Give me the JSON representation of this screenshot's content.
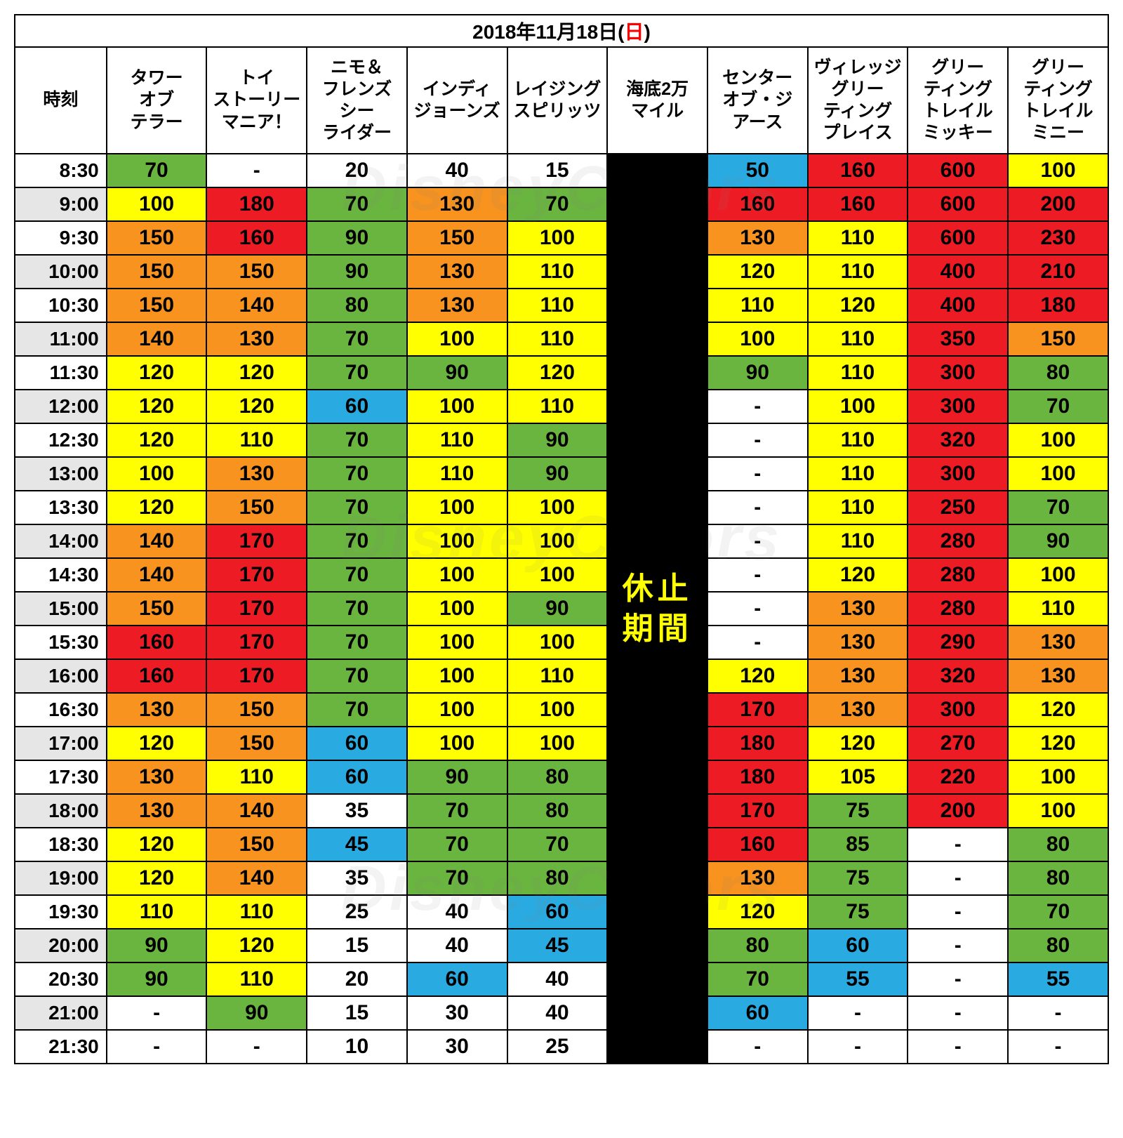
{
  "title_prefix": "2018年11月18日(",
  "title_day": "日",
  "title_suffix": ")",
  "closed_label": "休止\n期間",
  "watermark_text": "DisneyColors",
  "colors": {
    "green": "#6ab53f",
    "yellow": "#ffff00",
    "orange": "#f7931e",
    "red": "#ed1c24",
    "cyan": "#29abe2",
    "white": "#ffffff",
    "grey": "#e6e6e6",
    "black": "#000000",
    "border": "#000000"
  },
  "columns": [
    "時刻",
    "タワー\nオブ\nテラー",
    "トイ\nストーリー\nマニア！",
    "ニモ＆\nフレンズ\nシー\nライダー",
    "インディ\nジョーンズ",
    "レイジング\nスピリッツ",
    "海底2万\nマイル",
    "センター\nオブ・ジ\nアース",
    "ヴィレッジ\nグリー\nティング\nプレイス",
    "グリー\nティング\nトレイル\nミッキー",
    "グリー\nティング\nトレイル\nミニー"
  ],
  "closed_column_index": 6,
  "closed_first_row": 0,
  "closed_rowspan": 27,
  "times": [
    "8:30",
    "9:00",
    "9:30",
    "10:00",
    "10:30",
    "11:00",
    "11:30",
    "12:00",
    "12:30",
    "13:00",
    "13:30",
    "14:00",
    "14:30",
    "15:00",
    "15:30",
    "16:00",
    "16:30",
    "17:00",
    "17:30",
    "18:00",
    "18:30",
    "19:00",
    "19:30",
    "20:00",
    "20:30",
    "21:00",
    "21:30"
  ],
  "time_alt_rows": [
    1,
    3,
    5,
    7,
    9,
    11,
    13,
    15,
    17,
    19,
    21,
    23,
    25
  ],
  "rows": [
    [
      {
        "v": "70",
        "c": "green"
      },
      {
        "v": "-",
        "c": "white"
      },
      {
        "v": "20",
        "c": "white"
      },
      {
        "v": "40",
        "c": "white"
      },
      {
        "v": "15",
        "c": "white"
      },
      null,
      {
        "v": "50",
        "c": "cyan"
      },
      {
        "v": "160",
        "c": "red"
      },
      {
        "v": "600",
        "c": "red"
      },
      {
        "v": "100",
        "c": "yellow"
      }
    ],
    [
      {
        "v": "100",
        "c": "yellow"
      },
      {
        "v": "180",
        "c": "red"
      },
      {
        "v": "70",
        "c": "green"
      },
      {
        "v": "130",
        "c": "orange"
      },
      {
        "v": "70",
        "c": "green"
      },
      null,
      {
        "v": "160",
        "c": "red"
      },
      {
        "v": "160",
        "c": "red"
      },
      {
        "v": "600",
        "c": "red"
      },
      {
        "v": "200",
        "c": "red"
      }
    ],
    [
      {
        "v": "150",
        "c": "orange"
      },
      {
        "v": "160",
        "c": "red"
      },
      {
        "v": "90",
        "c": "green"
      },
      {
        "v": "150",
        "c": "orange"
      },
      {
        "v": "100",
        "c": "yellow"
      },
      null,
      {
        "v": "130",
        "c": "orange"
      },
      {
        "v": "110",
        "c": "yellow"
      },
      {
        "v": "600",
        "c": "red"
      },
      {
        "v": "230",
        "c": "red"
      }
    ],
    [
      {
        "v": "150",
        "c": "orange"
      },
      {
        "v": "150",
        "c": "orange"
      },
      {
        "v": "90",
        "c": "green"
      },
      {
        "v": "130",
        "c": "orange"
      },
      {
        "v": "110",
        "c": "yellow"
      },
      null,
      {
        "v": "120",
        "c": "yellow"
      },
      {
        "v": "110",
        "c": "yellow"
      },
      {
        "v": "400",
        "c": "red"
      },
      {
        "v": "210",
        "c": "red"
      }
    ],
    [
      {
        "v": "150",
        "c": "orange"
      },
      {
        "v": "140",
        "c": "orange"
      },
      {
        "v": "80",
        "c": "green"
      },
      {
        "v": "130",
        "c": "orange"
      },
      {
        "v": "110",
        "c": "yellow"
      },
      null,
      {
        "v": "110",
        "c": "yellow"
      },
      {
        "v": "120",
        "c": "yellow"
      },
      {
        "v": "400",
        "c": "red"
      },
      {
        "v": "180",
        "c": "red"
      }
    ],
    [
      {
        "v": "140",
        "c": "orange"
      },
      {
        "v": "130",
        "c": "orange"
      },
      {
        "v": "70",
        "c": "green"
      },
      {
        "v": "100",
        "c": "yellow"
      },
      {
        "v": "110",
        "c": "yellow"
      },
      null,
      {
        "v": "100",
        "c": "yellow"
      },
      {
        "v": "110",
        "c": "yellow"
      },
      {
        "v": "350",
        "c": "red"
      },
      {
        "v": "150",
        "c": "orange"
      }
    ],
    [
      {
        "v": "120",
        "c": "yellow"
      },
      {
        "v": "120",
        "c": "yellow"
      },
      {
        "v": "70",
        "c": "green"
      },
      {
        "v": "90",
        "c": "green"
      },
      {
        "v": "120",
        "c": "yellow"
      },
      null,
      {
        "v": "90",
        "c": "green"
      },
      {
        "v": "110",
        "c": "yellow"
      },
      {
        "v": "300",
        "c": "red"
      },
      {
        "v": "80",
        "c": "green"
      }
    ],
    [
      {
        "v": "120",
        "c": "yellow"
      },
      {
        "v": "120",
        "c": "yellow"
      },
      {
        "v": "60",
        "c": "cyan"
      },
      {
        "v": "100",
        "c": "yellow"
      },
      {
        "v": "110",
        "c": "yellow"
      },
      null,
      {
        "v": "-",
        "c": "white"
      },
      {
        "v": "100",
        "c": "yellow"
      },
      {
        "v": "300",
        "c": "red"
      },
      {
        "v": "70",
        "c": "green"
      }
    ],
    [
      {
        "v": "120",
        "c": "yellow"
      },
      {
        "v": "110",
        "c": "yellow"
      },
      {
        "v": "70",
        "c": "green"
      },
      {
        "v": "110",
        "c": "yellow"
      },
      {
        "v": "90",
        "c": "green"
      },
      null,
      {
        "v": "-",
        "c": "white"
      },
      {
        "v": "110",
        "c": "yellow"
      },
      {
        "v": "320",
        "c": "red"
      },
      {
        "v": "100",
        "c": "yellow"
      }
    ],
    [
      {
        "v": "100",
        "c": "yellow"
      },
      {
        "v": "130",
        "c": "orange"
      },
      {
        "v": "70",
        "c": "green"
      },
      {
        "v": "110",
        "c": "yellow"
      },
      {
        "v": "90",
        "c": "green"
      },
      null,
      {
        "v": "-",
        "c": "white"
      },
      {
        "v": "110",
        "c": "yellow"
      },
      {
        "v": "300",
        "c": "red"
      },
      {
        "v": "100",
        "c": "yellow"
      }
    ],
    [
      {
        "v": "120",
        "c": "yellow"
      },
      {
        "v": "150",
        "c": "orange"
      },
      {
        "v": "70",
        "c": "green"
      },
      {
        "v": "100",
        "c": "yellow"
      },
      {
        "v": "100",
        "c": "yellow"
      },
      null,
      {
        "v": "-",
        "c": "white"
      },
      {
        "v": "110",
        "c": "yellow"
      },
      {
        "v": "250",
        "c": "red"
      },
      {
        "v": "70",
        "c": "green"
      }
    ],
    [
      {
        "v": "140",
        "c": "orange"
      },
      {
        "v": "170",
        "c": "red"
      },
      {
        "v": "70",
        "c": "green"
      },
      {
        "v": "100",
        "c": "yellow"
      },
      {
        "v": "100",
        "c": "yellow"
      },
      null,
      {
        "v": "-",
        "c": "white"
      },
      {
        "v": "110",
        "c": "yellow"
      },
      {
        "v": "280",
        "c": "red"
      },
      {
        "v": "90",
        "c": "green"
      }
    ],
    [
      {
        "v": "140",
        "c": "orange"
      },
      {
        "v": "170",
        "c": "red"
      },
      {
        "v": "70",
        "c": "green"
      },
      {
        "v": "100",
        "c": "yellow"
      },
      {
        "v": "100",
        "c": "yellow"
      },
      null,
      {
        "v": "-",
        "c": "white"
      },
      {
        "v": "120",
        "c": "yellow"
      },
      {
        "v": "280",
        "c": "red"
      },
      {
        "v": "100",
        "c": "yellow"
      }
    ],
    [
      {
        "v": "150",
        "c": "orange"
      },
      {
        "v": "170",
        "c": "red"
      },
      {
        "v": "70",
        "c": "green"
      },
      {
        "v": "100",
        "c": "yellow"
      },
      {
        "v": "90",
        "c": "green"
      },
      null,
      {
        "v": "-",
        "c": "white"
      },
      {
        "v": "130",
        "c": "orange"
      },
      {
        "v": "280",
        "c": "red"
      },
      {
        "v": "110",
        "c": "yellow"
      }
    ],
    [
      {
        "v": "160",
        "c": "red"
      },
      {
        "v": "170",
        "c": "red"
      },
      {
        "v": "70",
        "c": "green"
      },
      {
        "v": "100",
        "c": "yellow"
      },
      {
        "v": "100",
        "c": "yellow"
      },
      null,
      {
        "v": "-",
        "c": "white"
      },
      {
        "v": "130",
        "c": "orange"
      },
      {
        "v": "290",
        "c": "red"
      },
      {
        "v": "130",
        "c": "orange"
      }
    ],
    [
      {
        "v": "160",
        "c": "red"
      },
      {
        "v": "170",
        "c": "red"
      },
      {
        "v": "70",
        "c": "green"
      },
      {
        "v": "100",
        "c": "yellow"
      },
      {
        "v": "110",
        "c": "yellow"
      },
      null,
      {
        "v": "120",
        "c": "yellow"
      },
      {
        "v": "130",
        "c": "orange"
      },
      {
        "v": "320",
        "c": "red"
      },
      {
        "v": "130",
        "c": "orange"
      }
    ],
    [
      {
        "v": "130",
        "c": "orange"
      },
      {
        "v": "150",
        "c": "orange"
      },
      {
        "v": "70",
        "c": "green"
      },
      {
        "v": "100",
        "c": "yellow"
      },
      {
        "v": "100",
        "c": "yellow"
      },
      null,
      {
        "v": "170",
        "c": "red"
      },
      {
        "v": "130",
        "c": "orange"
      },
      {
        "v": "300",
        "c": "red"
      },
      {
        "v": "120",
        "c": "yellow"
      }
    ],
    [
      {
        "v": "120",
        "c": "yellow"
      },
      {
        "v": "150",
        "c": "orange"
      },
      {
        "v": "60",
        "c": "cyan"
      },
      {
        "v": "100",
        "c": "yellow"
      },
      {
        "v": "100",
        "c": "yellow"
      },
      null,
      {
        "v": "180",
        "c": "red"
      },
      {
        "v": "120",
        "c": "yellow"
      },
      {
        "v": "270",
        "c": "red"
      },
      {
        "v": "120",
        "c": "yellow"
      }
    ],
    [
      {
        "v": "130",
        "c": "orange"
      },
      {
        "v": "110",
        "c": "yellow"
      },
      {
        "v": "60",
        "c": "cyan"
      },
      {
        "v": "90",
        "c": "green"
      },
      {
        "v": "80",
        "c": "green"
      },
      null,
      {
        "v": "180",
        "c": "red"
      },
      {
        "v": "105",
        "c": "yellow"
      },
      {
        "v": "220",
        "c": "red"
      },
      {
        "v": "100",
        "c": "yellow"
      }
    ],
    [
      {
        "v": "130",
        "c": "orange"
      },
      {
        "v": "140",
        "c": "orange"
      },
      {
        "v": "35",
        "c": "white"
      },
      {
        "v": "70",
        "c": "green"
      },
      {
        "v": "80",
        "c": "green"
      },
      null,
      {
        "v": "170",
        "c": "red"
      },
      {
        "v": "75",
        "c": "green"
      },
      {
        "v": "200",
        "c": "red"
      },
      {
        "v": "100",
        "c": "yellow"
      }
    ],
    [
      {
        "v": "120",
        "c": "yellow"
      },
      {
        "v": "150",
        "c": "orange"
      },
      {
        "v": "45",
        "c": "cyan"
      },
      {
        "v": "70",
        "c": "green"
      },
      {
        "v": "70",
        "c": "green"
      },
      null,
      {
        "v": "160",
        "c": "red"
      },
      {
        "v": "85",
        "c": "green"
      },
      {
        "v": "-",
        "c": "white"
      },
      {
        "v": "80",
        "c": "green"
      }
    ],
    [
      {
        "v": "120",
        "c": "yellow"
      },
      {
        "v": "140",
        "c": "orange"
      },
      {
        "v": "35",
        "c": "white"
      },
      {
        "v": "70",
        "c": "green"
      },
      {
        "v": "80",
        "c": "green"
      },
      null,
      {
        "v": "130",
        "c": "orange"
      },
      {
        "v": "75",
        "c": "green"
      },
      {
        "v": "-",
        "c": "white"
      },
      {
        "v": "80",
        "c": "green"
      }
    ],
    [
      {
        "v": "110",
        "c": "yellow"
      },
      {
        "v": "110",
        "c": "yellow"
      },
      {
        "v": "25",
        "c": "white"
      },
      {
        "v": "40",
        "c": "white"
      },
      {
        "v": "60",
        "c": "cyan"
      },
      null,
      {
        "v": "120",
        "c": "yellow"
      },
      {
        "v": "75",
        "c": "green"
      },
      {
        "v": "-",
        "c": "white"
      },
      {
        "v": "70",
        "c": "green"
      }
    ],
    [
      {
        "v": "90",
        "c": "green"
      },
      {
        "v": "120",
        "c": "yellow"
      },
      {
        "v": "15",
        "c": "white"
      },
      {
        "v": "40",
        "c": "white"
      },
      {
        "v": "45",
        "c": "cyan"
      },
      null,
      {
        "v": "80",
        "c": "green"
      },
      {
        "v": "60",
        "c": "cyan"
      },
      {
        "v": "-",
        "c": "white"
      },
      {
        "v": "80",
        "c": "green"
      }
    ],
    [
      {
        "v": "90",
        "c": "green"
      },
      {
        "v": "110",
        "c": "yellow"
      },
      {
        "v": "20",
        "c": "white"
      },
      {
        "v": "60",
        "c": "cyan"
      },
      {
        "v": "40",
        "c": "white"
      },
      null,
      {
        "v": "70",
        "c": "green"
      },
      {
        "v": "55",
        "c": "cyan"
      },
      {
        "v": "-",
        "c": "white"
      },
      {
        "v": "55",
        "c": "cyan"
      }
    ],
    [
      {
        "v": "-",
        "c": "white"
      },
      {
        "v": "90",
        "c": "green"
      },
      {
        "v": "15",
        "c": "white"
      },
      {
        "v": "30",
        "c": "white"
      },
      {
        "v": "40",
        "c": "white"
      },
      null,
      {
        "v": "60",
        "c": "cyan"
      },
      {
        "v": "-",
        "c": "white"
      },
      {
        "v": "-",
        "c": "white"
      },
      {
        "v": "-",
        "c": "white"
      }
    ],
    [
      {
        "v": "-",
        "c": "white"
      },
      {
        "v": "-",
        "c": "white"
      },
      {
        "v": "10",
        "c": "white"
      },
      {
        "v": "30",
        "c": "white"
      },
      {
        "v": "25",
        "c": "white"
      },
      null,
      {
        "v": "-",
        "c": "white"
      },
      {
        "v": "-",
        "c": "white"
      },
      {
        "v": "-",
        "c": "white"
      },
      {
        "v": "-",
        "c": "white"
      }
    ]
  ]
}
